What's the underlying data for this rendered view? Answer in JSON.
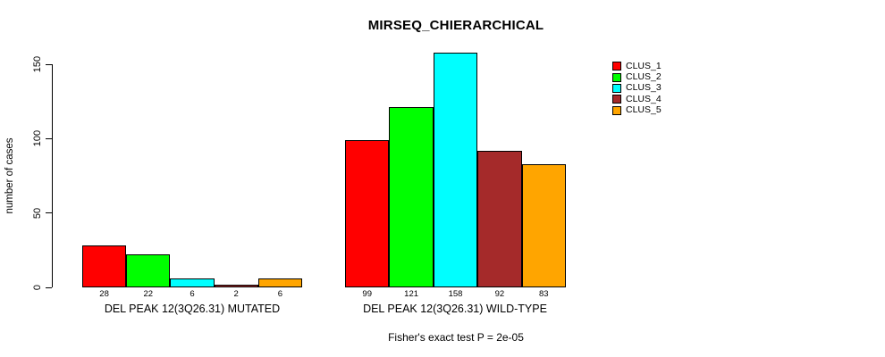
{
  "chart_data": {
    "type": "bar",
    "title": "MIRSEQ_CHIERARCHICAL",
    "ylabel": "number of cases",
    "yticks": [
      0,
      50,
      100,
      150
    ],
    "ylim": [
      0,
      158
    ],
    "grid": false,
    "legend_position": "top-right",
    "bar_value_labels": true,
    "categories": [
      "DEL PEAK 12(3Q26.31) MUTATED",
      "DEL PEAK 12(3Q26.31) WILD-TYPE"
    ],
    "series": [
      {
        "name": "CLUS_1",
        "color": "#FF0000",
        "values": [
          28,
          99
        ]
      },
      {
        "name": "CLUS_2",
        "color": "#00FF00",
        "values": [
          22,
          121
        ]
      },
      {
        "name": "CLUS_3",
        "color": "#00FFFF",
        "values": [
          6,
          158
        ]
      },
      {
        "name": "CLUS_4",
        "color": "#A52A2A",
        "values": [
          2,
          92
        ]
      },
      {
        "name": "CLUS_5",
        "color": "#FFA500",
        "values": [
          6,
          83
        ]
      }
    ],
    "caption": "Fisher's exact test P = 2e-05"
  }
}
